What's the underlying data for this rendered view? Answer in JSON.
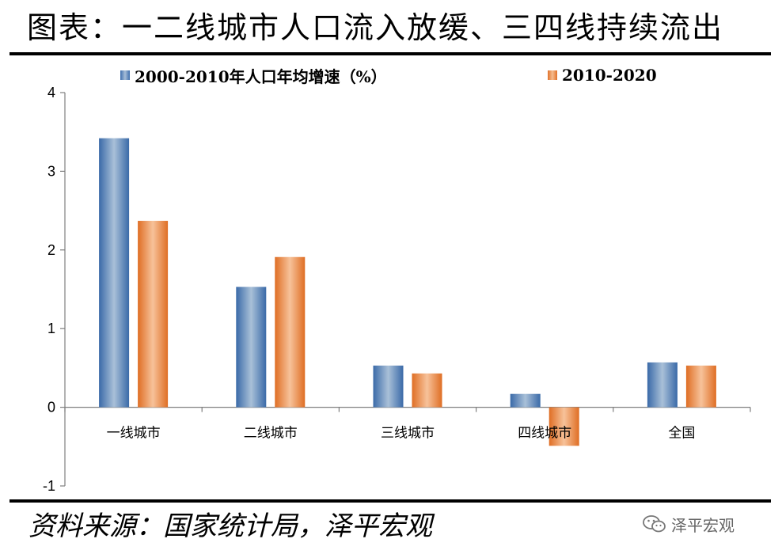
{
  "title": "图表：一二线城市人口流入放缓、三四线持续流出",
  "source": "资料来源：国家统计局，泽平宏观",
  "watermark": {
    "text": "泽平宏观",
    "icon": "wechat-icon"
  },
  "colors": {
    "series1": "#4a7ebb",
    "series2": "#ed7d31"
  },
  "chart_data": {
    "type": "bar",
    "categories": [
      "一线城市",
      "二线城市",
      "三线城市",
      "四线城市",
      "全国"
    ],
    "series": [
      {
        "name": "2000-2010年人口年均增速（%）",
        "values": [
          3.42,
          1.53,
          0.53,
          0.17,
          0.57
        ]
      },
      {
        "name": "2010-2020",
        "values": [
          2.37,
          1.91,
          0.43,
          -0.49,
          0.53
        ]
      }
    ],
    "ylim": [
      -1,
      4
    ],
    "yticks": [
      -1,
      0,
      1,
      2,
      3,
      4
    ],
    "grid": false,
    "legend": "top"
  }
}
